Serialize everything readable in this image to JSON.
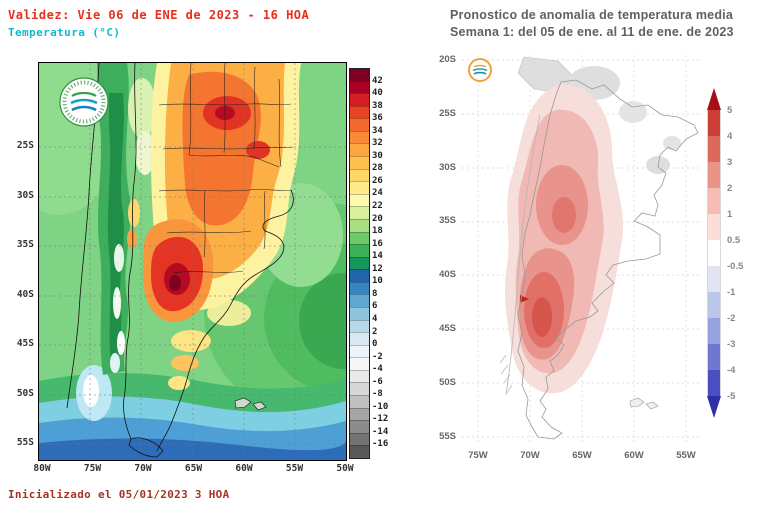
{
  "page": {
    "background": "#ffffff"
  },
  "left_map": {
    "title": "Validez: Vie 06 de ENE de 2023 - 16 HOA",
    "subtitle": "Temperatura (°C)",
    "footer": "Inicializado el 05/01/2023 3 HOA",
    "title_color": "#e5301d",
    "subtitle_color": "#14b8cc",
    "footer_color": "#a33527",
    "lat_ticks": [
      "25S",
      "30S",
      "35S",
      "40S",
      "45S",
      "50S",
      "55S"
    ],
    "lon_ticks": [
      "80W",
      "75W",
      "70W",
      "65W",
      "60W",
      "55W",
      "50W"
    ],
    "logo": "smn-argentina-logo",
    "colorbar": {
      "unit": "°C",
      "tick_values": [
        42,
        40,
        38,
        36,
        34,
        32,
        30,
        28,
        26,
        24,
        22,
        20,
        18,
        16,
        14,
        12,
        10,
        8,
        6,
        4,
        2,
        0,
        -2,
        -4,
        -6,
        -8,
        -10,
        -12,
        -14,
        -16
      ],
      "segment_colors": [
        "#7e0023",
        "#a90026",
        "#d21e24",
        "#e94326",
        "#f2682e",
        "#f98a35",
        "#fca63f",
        "#fec14e",
        "#fed766",
        "#feeb88",
        "#fdf9ae",
        "#d9f09a",
        "#a8df83",
        "#6fcb68",
        "#3bb257",
        "#17965c",
        "#2166ac",
        "#3585bf",
        "#5fa6d1",
        "#8ec4de",
        "#b6d9ea",
        "#d8e9f3",
        "#eef4f9",
        "#f7f7f7",
        "#e9e9e9",
        "#d7d7d7",
        "#c0c0c0",
        "#a6a6a6",
        "#8c8c8c",
        "#737373",
        "#595959"
      ]
    }
  },
  "right_map": {
    "title_line1": "Pronostico de anomalia de temperatura media",
    "title_line2": "Semana 1: del 05 de ene. al 11 de ene. de 2023",
    "title_color": "#606060",
    "lat_ticks": [
      "20S",
      "25S",
      "30S",
      "35S",
      "40S",
      "45S",
      "50S",
      "55S"
    ],
    "lon_ticks": [
      "75W",
      "70W",
      "65W",
      "60W",
      "55W"
    ],
    "logo": "smn-argentina-logo-small",
    "colorbar": {
      "unit": "°C",
      "tick_labels": [
        "5",
        "4",
        "3",
        "2",
        "1",
        "0.5",
        "-0.5",
        "-1",
        "-2",
        "-3",
        "-4",
        "-5"
      ],
      "segment_colors": [
        "#a50f15",
        "#cb3e36",
        "#dc6a5c",
        "#eb9287",
        "#f6bcb4",
        "#fbdeda",
        "#ffffff",
        "#e0e4f3",
        "#bcc5ea",
        "#97a3de",
        "#7177d0",
        "#4a4fc0",
        "#2e2ea6"
      ]
    }
  },
  "chart_data": [
    {
      "type": "heatmap",
      "title": "Validez: Vie 06 de ENE de 2023 - 16 HOA",
      "subtitle": "Temperatura (°C)",
      "region": "Argentina",
      "x_ticks": [
        "80W",
        "75W",
        "70W",
        "65W",
        "60W",
        "55W",
        "50W"
      ],
      "y_ticks": [
        "25S",
        "30S",
        "35S",
        "40S",
        "45S",
        "50S",
        "55S"
      ],
      "scale_values": [
        42,
        40,
        38,
        36,
        34,
        32,
        30,
        28,
        26,
        24,
        22,
        20,
        18,
        16,
        14,
        12,
        10,
        8,
        6,
        4,
        2,
        0,
        -2,
        -4,
        -6,
        -8,
        -10,
        -12,
        -14,
        -16
      ],
      "field_summary": "Warm core 36-42°C over central-northern Argentina with maximum over La Pampa/Rio Negro; greens (10-24°C) over Andes, Chile and surrounding ocean; blues (<10°C) over far southern ocean",
      "footer": "Inicializado el 05/01/2023 3 HOA"
    },
    {
      "type": "heatmap",
      "title": "Pronostico de anomalia de temperatura media",
      "subtitle": "Semana 1: del 05 de ene. al 11 de ene. de 2023",
      "region": "Argentina",
      "x_ticks": [
        "75W",
        "70W",
        "65W",
        "60W",
        "55W"
      ],
      "y_ticks": [
        "20S",
        "25S",
        "30S",
        "35S",
        "40S",
        "45S",
        "50S",
        "55S"
      ],
      "scale_values": [
        5,
        4,
        3,
        2,
        1,
        0.5,
        -0.5,
        -1,
        -2,
        -3,
        -4,
        -5
      ],
      "field_summary": "Positive (red) temperature anomaly over central and western Argentina, strongest (+3 to +4) over Patagonia around 40S-47S; gray/no-signal areas in the north"
    }
  ]
}
